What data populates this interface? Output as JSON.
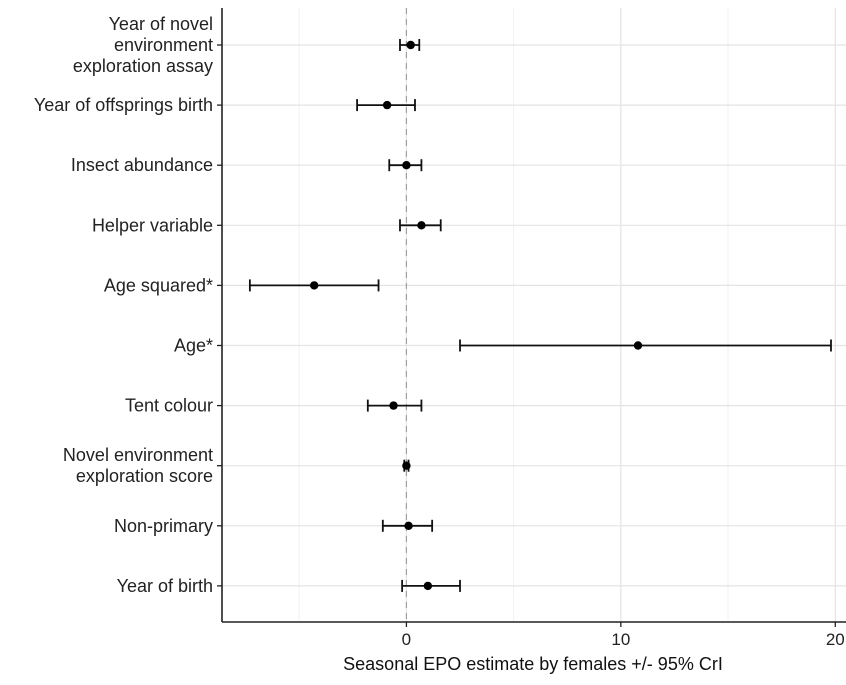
{
  "chart_data": {
    "type": "forest",
    "title": "",
    "xlabel": "Seasonal EPO estimate by females +/- 95% CrI",
    "ylabel": "",
    "xlim": [
      -8.6,
      20.5
    ],
    "x_ticks": [
      0,
      10,
      20
    ],
    "x_tick_labels": [
      "0",
      "10",
      "20"
    ],
    "grid": true,
    "reference_line": 0,
    "rows": [
      {
        "label": [
          "Year of novel",
          "environment",
          "exploration assay"
        ],
        "estimate": 0.2,
        "lower": -0.3,
        "upper": 0.6
      },
      {
        "label": [
          "Year of offsprings birth"
        ],
        "estimate": -0.9,
        "lower": -2.3,
        "upper": 0.4
      },
      {
        "label": [
          "Insect abundance"
        ],
        "estimate": 0.0,
        "lower": -0.8,
        "upper": 0.7
      },
      {
        "label": [
          "Helper variable"
        ],
        "estimate": 0.7,
        "lower": -0.3,
        "upper": 1.6
      },
      {
        "label": [
          "Age squared*"
        ],
        "estimate": -4.3,
        "lower": -7.3,
        "upper": -1.3
      },
      {
        "label": [
          "Age*"
        ],
        "estimate": 10.8,
        "lower": 2.5,
        "upper": 19.8
      },
      {
        "label": [
          "Tent colour"
        ],
        "estimate": -0.6,
        "lower": -1.8,
        "upper": 0.7
      },
      {
        "label": [
          "Novel environment",
          "exploration score"
        ],
        "estimate": 0.0,
        "lower": -0.1,
        "upper": 0.1
      },
      {
        "label": [
          "Non-primary"
        ],
        "estimate": 0.1,
        "lower": -1.1,
        "upper": 1.2
      },
      {
        "label": [
          "Year of birth"
        ],
        "estimate": 1.0,
        "lower": -0.2,
        "upper": 2.5
      }
    ]
  }
}
